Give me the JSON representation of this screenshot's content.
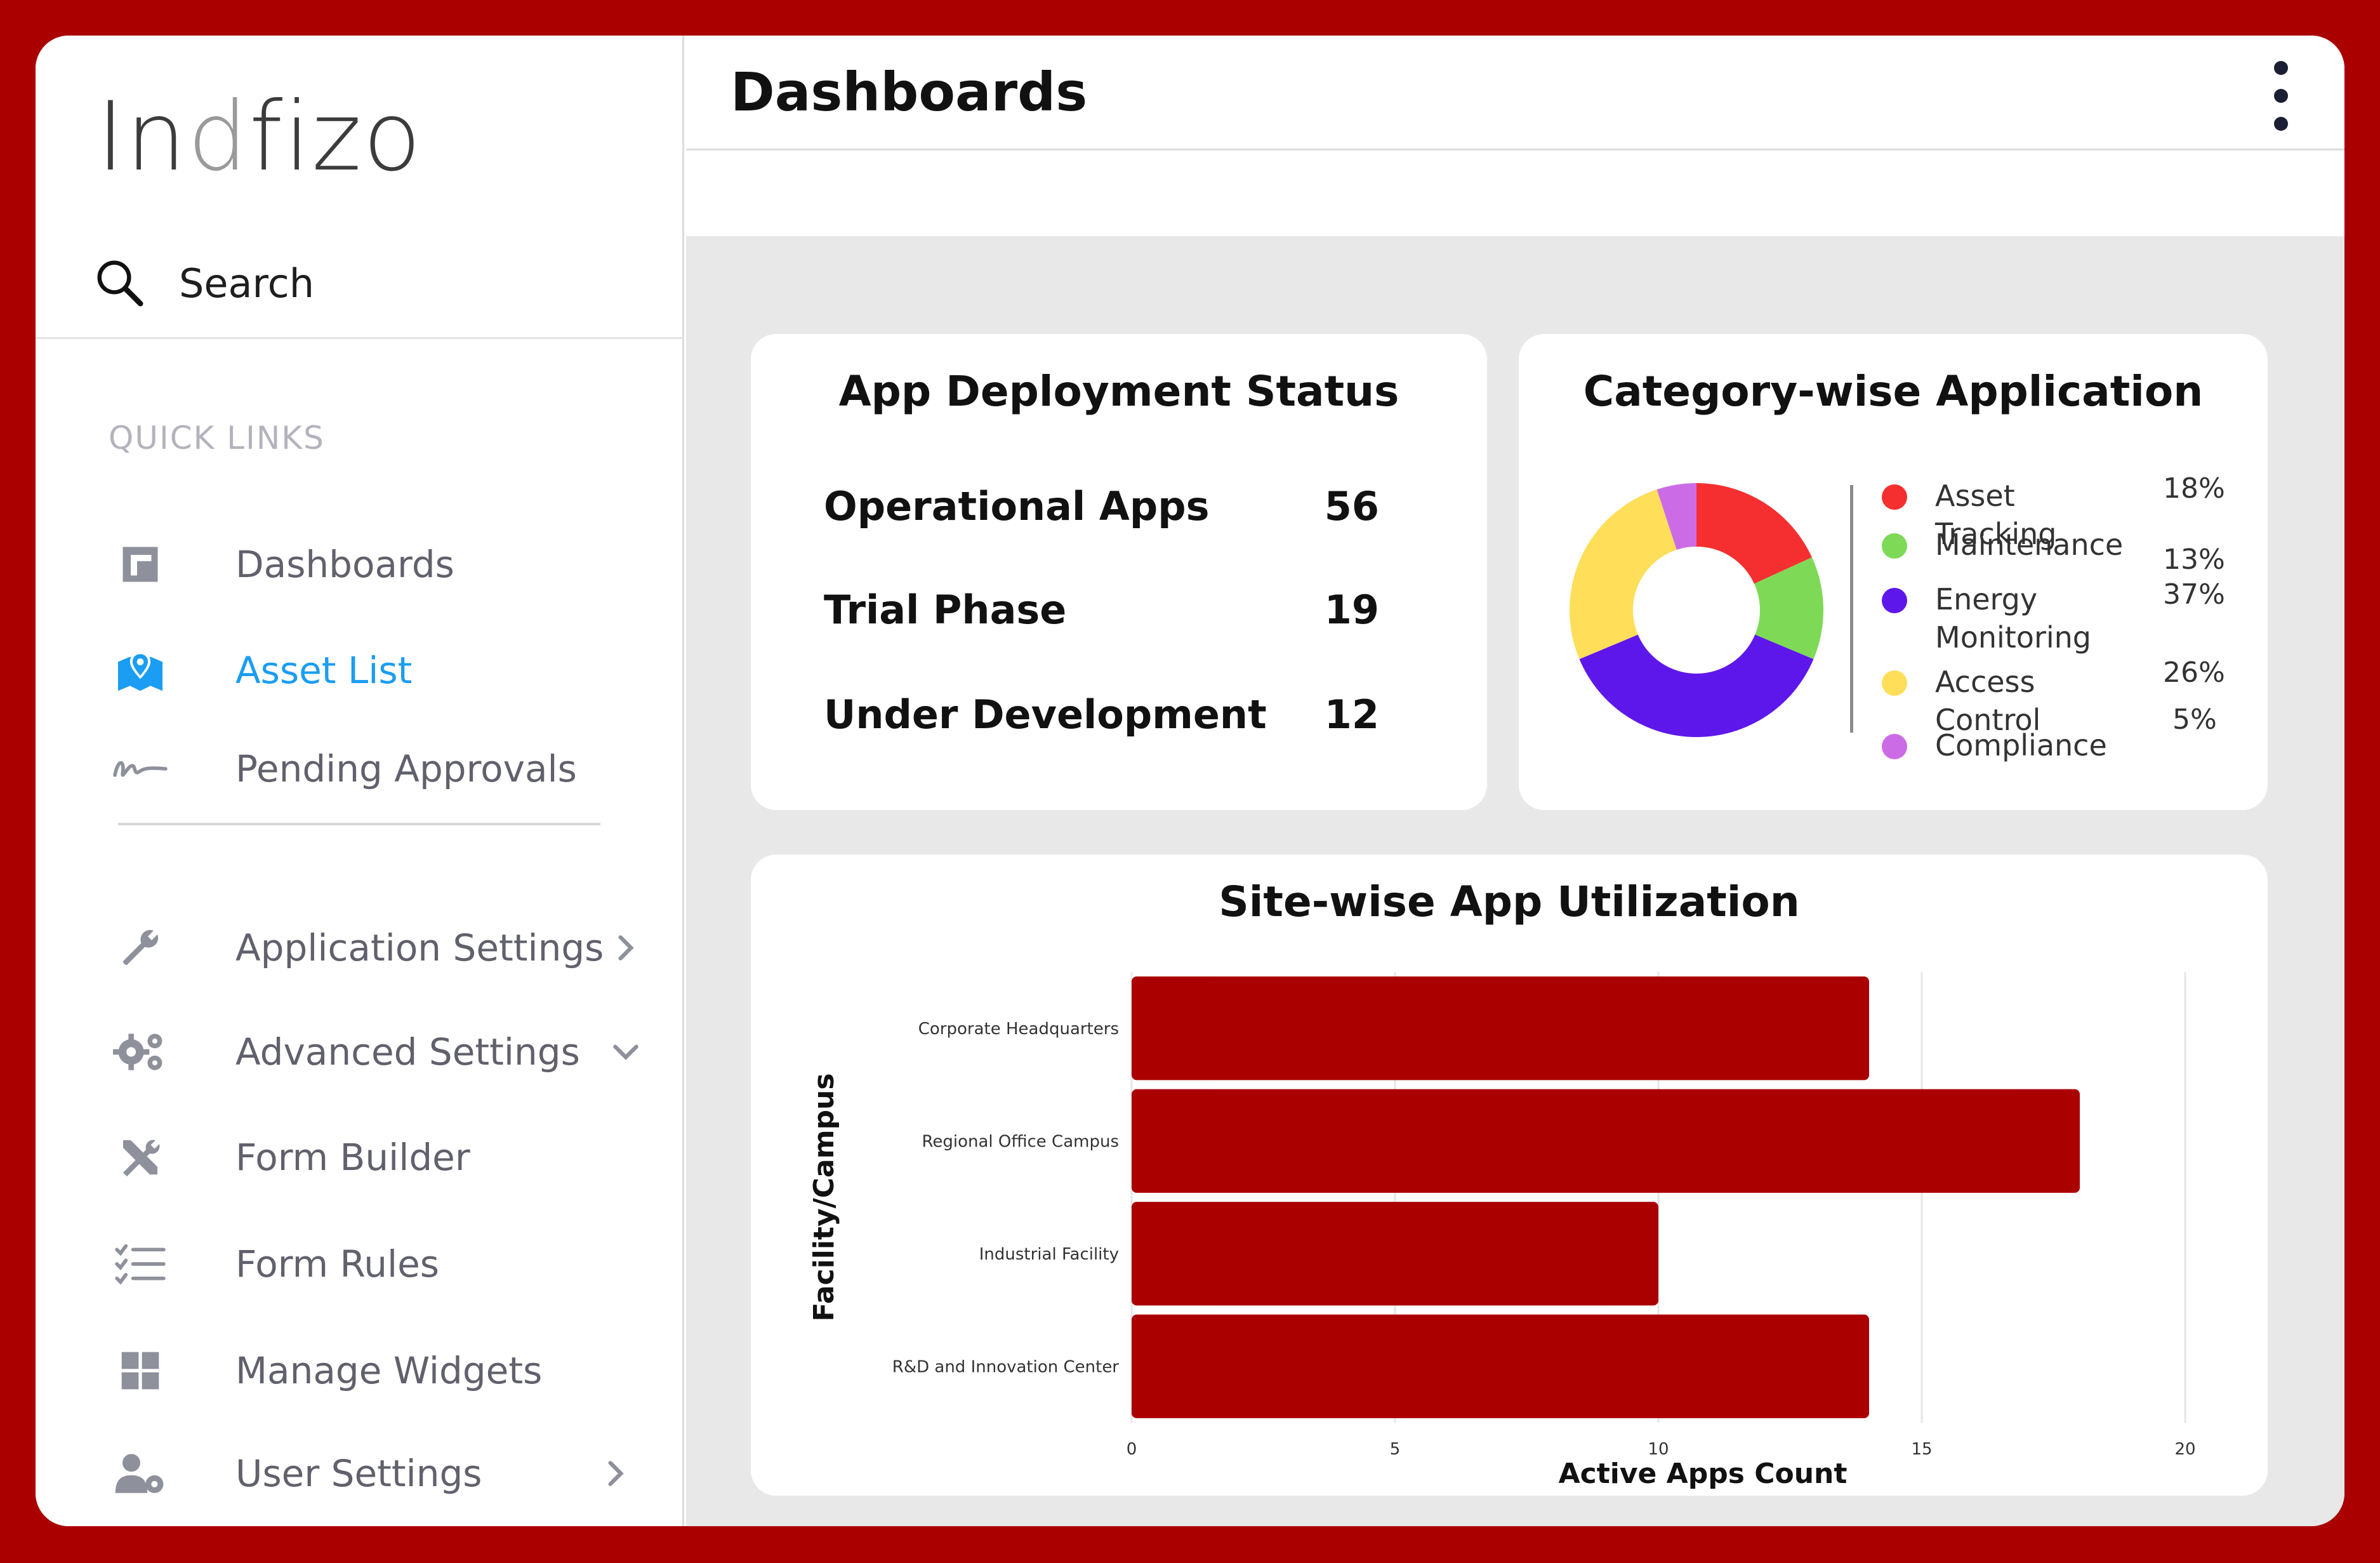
{
  "app": {
    "logo_text_1": "In",
    "logo_text_2": "d",
    "logo_text_3": "fizo"
  },
  "sidebar": {
    "search_label": "Search",
    "quick_links_label": "QUICK LINKS",
    "quick_links": [
      {
        "label": "Dashboards",
        "icon": "dashboard-square-icon"
      },
      {
        "label": "Asset List",
        "icon": "map-pin-icon",
        "active": true
      },
      {
        "label": "Pending Approvals",
        "icon": "signature-icon"
      }
    ],
    "settings": [
      {
        "label": "Application Settings",
        "icon": "wrench-icon",
        "chevron": "right"
      },
      {
        "label": "Advanced Settings",
        "icon": "gears-icon",
        "chevron": "down"
      },
      {
        "label": "Form Builder",
        "icon": "tools-icon"
      },
      {
        "label": "Form Rules",
        "icon": "checklist-icon"
      },
      {
        "label": "Manage Widgets",
        "icon": "grid-icon"
      },
      {
        "label": "User Settings",
        "icon": "user-gear-icon",
        "chevron": "right"
      }
    ]
  },
  "header": {
    "title": "Dashboards"
  },
  "deployment": {
    "title": "App Deployment Status",
    "rows": [
      {
        "label": "Operational Apps",
        "value": "56"
      },
      {
        "label": "Trial Phase",
        "value": "19"
      },
      {
        "label": "Under Development",
        "value": "12"
      }
    ]
  },
  "colors": {
    "brand_red": "#ab0000",
    "active_link": "#1a9df2"
  },
  "chart_data": [
    {
      "type": "pie",
      "title": "Category-wise Application",
      "donut": true,
      "categories": [
        "Asset Tracking",
        "Maintenance",
        "Energy Monitoring",
        "Access Control",
        "Compliance"
      ],
      "values": [
        18,
        13,
        37,
        26,
        5
      ],
      "labels": [
        "18%",
        "13%",
        "37%",
        "26%",
        "5%"
      ],
      "colors": [
        "#f52f2f",
        "#7ed957",
        "#5e17eb",
        "#ffde59",
        "#cb6ce6"
      ],
      "legend": "right"
    },
    {
      "type": "bar",
      "orientation": "horizontal",
      "title": "Site-wise App Utilization",
      "categories": [
        "Corporate Headquarters",
        "Regional Office Campus",
        "Industrial Facility",
        "R&D and Innovation Center"
      ],
      "values": [
        14,
        18,
        10,
        14
      ],
      "xlabel": "Active Apps Count",
      "ylabel": "Facility/Campus",
      "xlim": [
        0,
        20
      ],
      "xticks": [
        0,
        5,
        10,
        15,
        20
      ],
      "color": "#ab0000",
      "grid": true
    }
  ]
}
